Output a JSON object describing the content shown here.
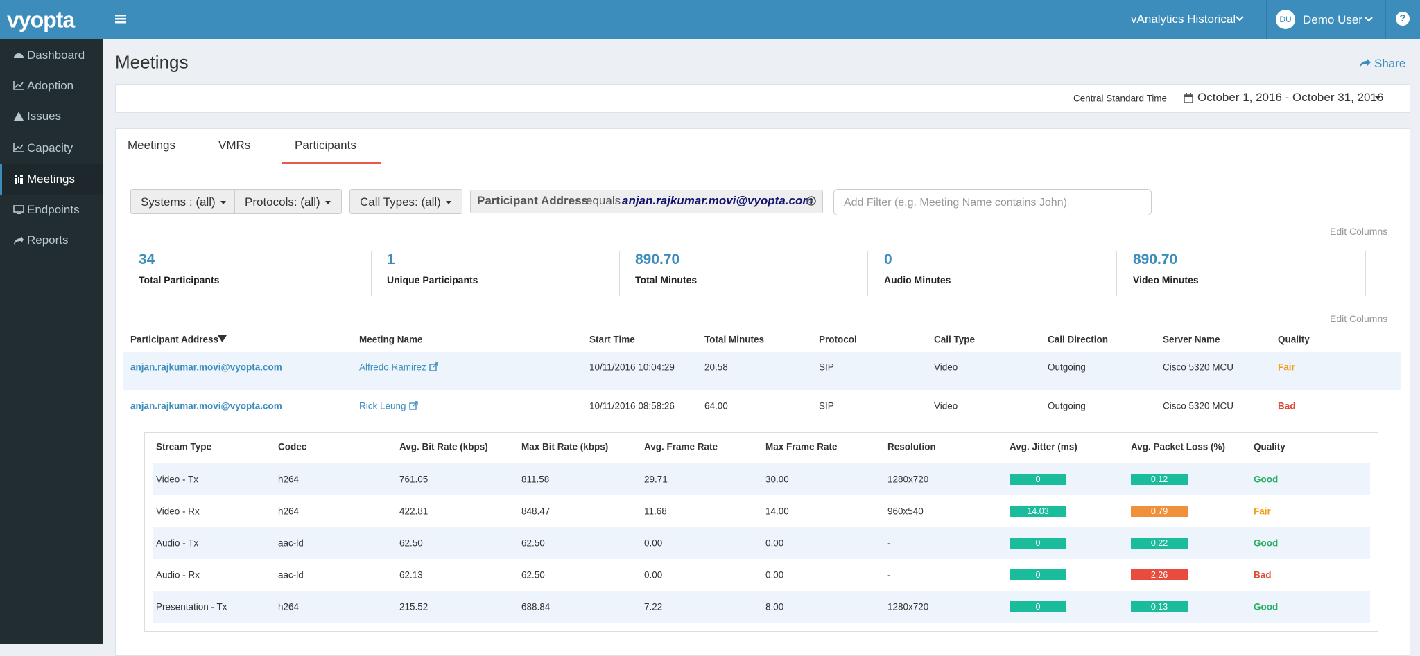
{
  "brand": "vyopta",
  "nav": [
    "Dashboard",
    "Adoption",
    "Issues",
    "Capacity",
    "Meetings",
    "Endpoints",
    "Reports"
  ],
  "nav_active": 4,
  "header": {
    "product": "vAnalytics Historical",
    "avatar": "DU",
    "user": "Demo User",
    "help": "?"
  },
  "page": {
    "title": "Meetings",
    "share": "Share"
  },
  "date_bar": {
    "timezone": "Central Standard Time",
    "range": "October 1, 2016 - October 31, 2016"
  },
  "tabs": [
    "Meetings",
    "VMRs",
    "Participants"
  ],
  "tab_active": 2,
  "filters": [
    "Systems : (all)",
    "Protocols: (all)",
    "Call Types: (all)"
  ],
  "active_filter": {
    "field": "Participant Address",
    "operator": "equals",
    "value": "anjan.rajkumar.movi@vyopta.com"
  },
  "filter_placeholder": "Add Filter (e.g. Meeting Name contains John)",
  "edit_columns": "Edit Columns",
  "stats": [
    {
      "value": "34",
      "label": "Total Participants"
    },
    {
      "value": "1",
      "label": "Unique Participants"
    },
    {
      "value": "890.70",
      "label": "Total Minutes"
    },
    {
      "value": "0",
      "label": "Audio Minutes"
    },
    {
      "value": "890.70",
      "label": "Video Minutes"
    }
  ],
  "table": {
    "columns": [
      "Participant Address",
      "Meeting Name",
      "Start Time",
      "Total Minutes",
      "Protocol",
      "Call Type",
      "Call Direction",
      "Server Name",
      "Quality"
    ],
    "rows": [
      {
        "cells": [
          "anjan.rajkumar.movi@vyopta.com",
          "Alfredo Ramirez",
          "10/11/2016 10:04:29",
          "20.58",
          "SIP",
          "Video",
          "Outgoing",
          "Cisco 5320 MCU"
        ],
        "quality": {
          "text": "Fair",
          "color": "#f39c12"
        }
      },
      {
        "cells": [
          "anjan.rajkumar.movi@vyopta.com",
          "Rick Leung",
          "10/11/2016 08:58:26",
          "64.00",
          "SIP",
          "Video",
          "Outgoing",
          "Cisco 5320 MCU"
        ],
        "quality": {
          "text": "Bad",
          "color": "#dd4b39"
        }
      }
    ]
  },
  "sub_table": {
    "columns": [
      "Stream Type",
      "Codec",
      "Avg. Bit Rate (kbps)",
      "Max Bit Rate (kbps)",
      "Avg. Frame Rate",
      "Max Frame Rate",
      "Resolution",
      "Avg. Jitter (ms)",
      "Avg. Packet Loss (%)",
      "Quality"
    ],
    "rows": [
      {
        "cells": [
          "Video - Tx",
          "h264",
          "761.05",
          "811.58",
          "29.71",
          "30.00",
          "1280x720"
        ],
        "jitter": {
          "text": "0",
          "color": "#1abc9c"
        },
        "loss": {
          "text": "0.12",
          "color": "#1abc9c"
        },
        "quality": {
          "text": "Good",
          "color": "#27ae60"
        }
      },
      {
        "cells": [
          "Video - Rx",
          "h264",
          "422.81",
          "848.47",
          "11.68",
          "14.00",
          "960x540"
        ],
        "jitter": {
          "text": "14.03",
          "color": "#1abc9c"
        },
        "loss": {
          "text": "0.79",
          "color": "#f0903a"
        },
        "quality": {
          "text": "Fair",
          "color": "#f39c12"
        }
      },
      {
        "cells": [
          "Audio - Tx",
          "aac-ld",
          "62.50",
          "62.50",
          "0.00",
          "0.00",
          "-"
        ],
        "jitter": {
          "text": "0",
          "color": "#1abc9c"
        },
        "loss": {
          "text": "0.22",
          "color": "#1abc9c"
        },
        "quality": {
          "text": "Good",
          "color": "#27ae60"
        }
      },
      {
        "cells": [
          "Audio - Rx",
          "aac-ld",
          "62.13",
          "62.50",
          "0.00",
          "0.00",
          "-"
        ],
        "jitter": {
          "text": "0",
          "color": "#1abc9c"
        },
        "loss": {
          "text": "2.26",
          "color": "#e74c3c"
        },
        "quality": {
          "text": "Bad",
          "color": "#dd4b39"
        }
      },
      {
        "cells": [
          "Presentation - Tx",
          "h264",
          "215.52",
          "688.84",
          "7.22",
          "8.00",
          "1280x720"
        ],
        "jitter": {
          "text": "0",
          "color": "#1abc9c"
        },
        "loss": {
          "text": "0.13",
          "color": "#1abc9c"
        },
        "quality": {
          "text": "Good",
          "color": "#27ae60"
        }
      }
    ]
  }
}
